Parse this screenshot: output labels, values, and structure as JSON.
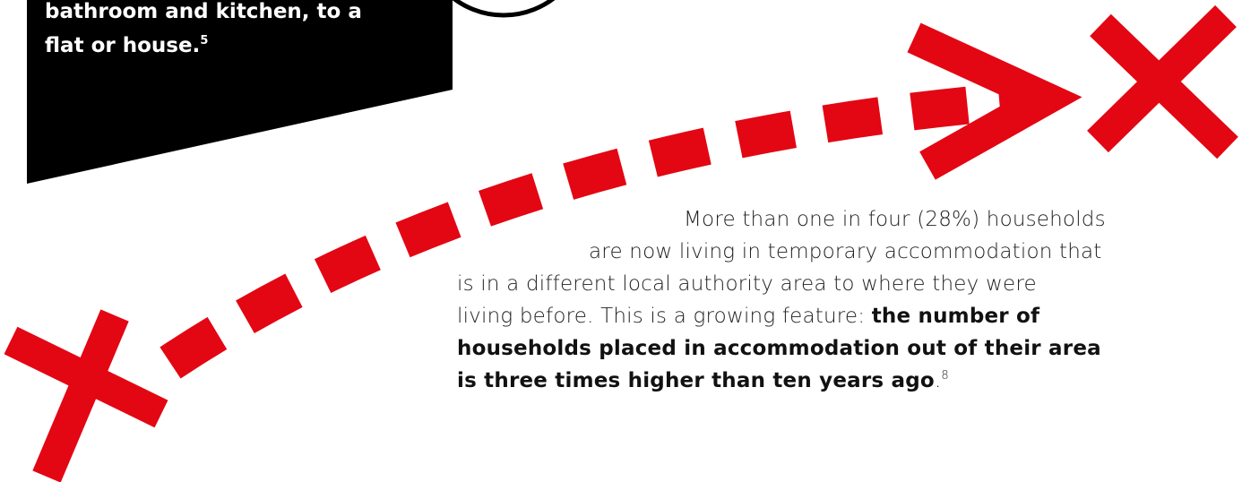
{
  "box": {
    "lines": [
      "bathroom and kitchen, to a",
      "flat or house."
    ],
    "footnote": "5"
  },
  "paragraph": {
    "line1": "More than one in four (28%) households",
    "line2": "are now living in temporary accommodation that",
    "line3": "is in a different local authority area to where they were",
    "line4": "living before. This is a growing feature:",
    "bold1": "the number of",
    "bold2": "households placed in accommodation out of their area",
    "bold3": "is three times higher than ten years ago",
    "end": ".",
    "footnote": "8"
  }
}
